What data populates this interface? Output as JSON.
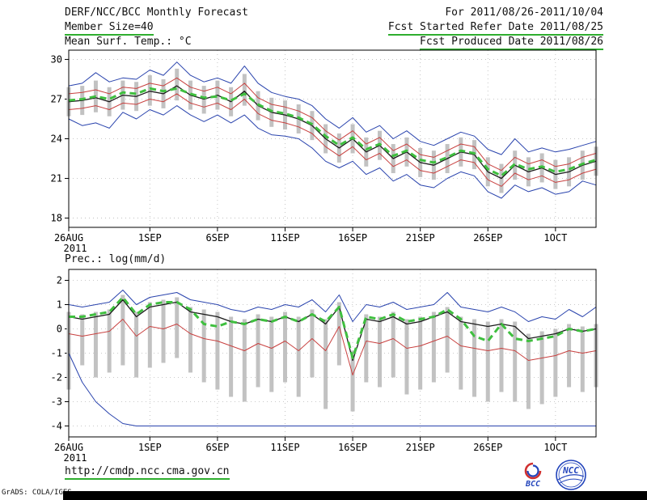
{
  "header": {
    "title": "DERF/NCC/BCC Monthly Forecast",
    "member_size": "Member Size=40",
    "for_range": "For 2011/08/26-2011/10/04",
    "fcst_started": "Fcst Started Refer Date 2011/08/25",
    "fcst_produced": "Fcst Produced Date 2011/08/26"
  },
  "footer": {
    "url": "http://cmdp.ncc.cma.gov.cn",
    "credit": "GrADS: COLA/IGES",
    "logo_bcc_label": "BCC",
    "logo_ncc_label": "NCC"
  },
  "colors": {
    "envelope_blue": "#2943ad",
    "quartile_red": "#c8403f",
    "mean_black": "#1a1a1a",
    "highlight_green": "#3fbf3f",
    "bar_gray": "#c2c2c2",
    "underline_green": "#2fae2f",
    "grid_gray": "#b8b8b8"
  },
  "chart_data": [
    {
      "type": "line",
      "title": "Mean Surf. Temp.: °C",
      "n_points": 40,
      "x_year": "2011",
      "ylim": [
        17.3,
        30.7
      ],
      "yticks": [
        18,
        21,
        24,
        27,
        30
      ],
      "xticks": [
        {
          "index": 0,
          "label": "26AUG"
        },
        {
          "index": 6,
          "label": "1SEP"
        },
        {
          "index": 11,
          "label": "6SEP"
        },
        {
          "index": 16,
          "label": "11SEP"
        },
        {
          "index": 21,
          "label": "16SEP"
        },
        {
          "index": 26,
          "label": "21SEP"
        },
        {
          "index": 31,
          "label": "26SEP"
        },
        {
          "index": 36,
          "label": "1OCT"
        }
      ],
      "bars": {
        "color": "#c2c2c2",
        "high": [
          27.9,
          28.0,
          28.4,
          27.9,
          28.4,
          28.3,
          28.8,
          28.5,
          29.3,
          28.4,
          28.0,
          28.4,
          27.9,
          28.9,
          27.6,
          27.1,
          26.9,
          26.6,
          26.1,
          25.1,
          24.4,
          25.1,
          24.1,
          24.6,
          23.6,
          24.1,
          23.3,
          23.1,
          23.6,
          24.1,
          23.9,
          22.6,
          22.1,
          23.1,
          22.6,
          22.9,
          22.4,
          22.6,
          23.1,
          23.4
        ],
        "low": [
          25.7,
          25.8,
          26.0,
          25.7,
          26.2,
          26.1,
          26.5,
          26.3,
          26.9,
          26.2,
          25.9,
          26.2,
          25.7,
          26.5,
          25.4,
          24.9,
          24.7,
          24.4,
          23.9,
          22.9,
          22.2,
          22.9,
          21.9,
          22.4,
          21.4,
          21.9,
          21.1,
          20.9,
          21.4,
          21.9,
          21.7,
          20.4,
          19.9,
          20.9,
          20.4,
          20.7,
          20.2,
          20.4,
          20.9,
          21.2
        ]
      },
      "series": [
        {
          "name": "ensemble-max",
          "color": "#2943ad",
          "width": 1,
          "dash": "",
          "values": [
            28.0,
            28.2,
            29.0,
            28.3,
            28.6,
            28.5,
            29.2,
            28.8,
            29.8,
            28.8,
            28.3,
            28.6,
            28.2,
            29.5,
            28.2,
            27.5,
            27.2,
            27.0,
            26.5,
            25.5,
            24.8,
            25.6,
            24.5,
            25.0,
            24.0,
            24.6,
            23.8,
            23.5,
            24.0,
            24.5,
            24.2,
            23.2,
            22.8,
            24.0,
            23.0,
            23.3,
            23.0,
            23.2,
            23.5,
            23.8
          ]
        },
        {
          "name": "ensemble-min",
          "color": "#2943ad",
          "width": 1,
          "dash": "",
          "values": [
            25.5,
            25.0,
            25.2,
            24.8,
            26.0,
            25.5,
            26.2,
            25.8,
            26.5,
            25.8,
            25.3,
            25.8,
            25.2,
            25.8,
            24.8,
            24.3,
            24.2,
            24.0,
            23.3,
            22.3,
            21.8,
            22.3,
            21.3,
            21.8,
            20.8,
            21.3,
            20.5,
            20.3,
            21.0,
            21.5,
            21.2,
            20.0,
            19.5,
            20.5,
            20.0,
            20.3,
            19.8,
            20.0,
            20.8,
            20.5
          ]
        },
        {
          "name": "upper-spread",
          "color": "#c8403f",
          "width": 1,
          "dash": "",
          "values": [
            27.4,
            27.5,
            27.7,
            27.4,
            27.9,
            27.8,
            28.2,
            28.0,
            28.6,
            27.9,
            27.6,
            27.9,
            27.4,
            28.2,
            27.1,
            26.6,
            26.4,
            26.1,
            25.6,
            24.6,
            23.9,
            24.6,
            23.6,
            24.1,
            23.1,
            23.6,
            22.8,
            22.6,
            23.1,
            23.6,
            23.4,
            22.1,
            21.6,
            22.6,
            22.1,
            22.4,
            21.9,
            22.1,
            22.6,
            22.9
          ]
        },
        {
          "name": "lower-spread",
          "color": "#c8403f",
          "width": 1,
          "dash": "",
          "values": [
            26.2,
            26.3,
            26.5,
            26.2,
            26.7,
            26.6,
            27.0,
            26.8,
            27.4,
            26.7,
            26.4,
            26.7,
            26.2,
            27.0,
            25.9,
            25.4,
            25.2,
            24.9,
            24.4,
            23.4,
            22.7,
            23.4,
            22.4,
            22.9,
            21.9,
            22.4,
            21.6,
            21.4,
            21.9,
            22.4,
            22.2,
            20.9,
            20.4,
            21.4,
            20.9,
            21.2,
            20.7,
            20.9,
            21.4,
            21.7
          ]
        },
        {
          "name": "ensemble-mean",
          "color": "#1a1a1a",
          "width": 1.3,
          "dash": "",
          "values": [
            26.8,
            26.9,
            27.1,
            26.8,
            27.3,
            27.2,
            27.6,
            27.4,
            28.0,
            27.3,
            27.0,
            27.3,
            26.8,
            27.6,
            26.5,
            26.0,
            25.8,
            25.5,
            25.0,
            24.0,
            23.3,
            24.0,
            23.0,
            23.5,
            22.5,
            23.0,
            22.2,
            22.0,
            22.5,
            23.0,
            22.8,
            21.5,
            21.0,
            22.0,
            21.5,
            21.8,
            21.3,
            21.5,
            22.0,
            22.3
          ]
        },
        {
          "name": "highlight-dashed",
          "color": "#3fbf3f",
          "width": 3,
          "dash": "8,5",
          "values": [
            26.9,
            27.0,
            27.2,
            27.0,
            27.5,
            27.4,
            27.8,
            27.6,
            27.8,
            27.4,
            27.1,
            27.2,
            26.9,
            27.4,
            26.6,
            26.1,
            25.9,
            25.6,
            25.1,
            24.2,
            23.5,
            24.1,
            23.2,
            23.6,
            22.7,
            23.1,
            22.4,
            22.2,
            22.6,
            23.1,
            22.9,
            21.7,
            21.2,
            22.1,
            21.7,
            21.9,
            21.5,
            21.7,
            22.1,
            22.4
          ]
        }
      ]
    },
    {
      "type": "line",
      "title": "Prec.: log(mm/d)",
      "n_points": 40,
      "x_year": "2011",
      "ylim": [
        -4.45,
        2.45
      ],
      "yticks": [
        -4,
        -3,
        -2,
        -1,
        0,
        1,
        2
      ],
      "xticks": [
        {
          "index": 0,
          "label": "26AUG"
        },
        {
          "index": 6,
          "label": "1SEP"
        },
        {
          "index": 11,
          "label": "6SEP"
        },
        {
          "index": 16,
          "label": "11SEP"
        },
        {
          "index": 21,
          "label": "16SEP"
        },
        {
          "index": 26,
          "label": "21SEP"
        },
        {
          "index": 31,
          "label": "26SEP"
        },
        {
          "index": 36,
          "label": "1OCT"
        }
      ],
      "bars": {
        "color": "#c2c2c2",
        "high": [
          0.7,
          0.6,
          0.7,
          0.8,
          1.4,
          0.7,
          1.1,
          1.2,
          1.3,
          0.9,
          0.8,
          0.7,
          0.5,
          0.4,
          0.6,
          0.5,
          0.7,
          0.5,
          0.8,
          0.4,
          1.1,
          -0.9,
          0.6,
          0.5,
          0.7,
          0.4,
          0.5,
          0.7,
          0.9,
          0.5,
          0.4,
          0.3,
          0.4,
          0.3,
          -0.2,
          -0.1,
          0,
          0.2,
          0.1,
          0.2
        ],
        "low": [
          -2.5,
          -1.5,
          -2.0,
          -1.8,
          -1.5,
          -2.0,
          -1.6,
          -1.4,
          -1.2,
          -1.8,
          -2.2,
          -2.5,
          -2.8,
          -3.0,
          -2.4,
          -2.6,
          -2.2,
          -2.8,
          -2.0,
          -3.3,
          -1.5,
          -3.4,
          -2.2,
          -2.4,
          -2.0,
          -2.7,
          -2.5,
          -2.2,
          -1.8,
          -2.5,
          -2.8,
          -3.0,
          -2.6,
          -3.0,
          -3.3,
          -3.1,
          -2.8,
          -2.4,
          -2.6,
          -2.4
        ]
      },
      "series": [
        {
          "name": "ensemble-max",
          "color": "#2943ad",
          "width": 1,
          "dash": "",
          "values": [
            1.0,
            0.9,
            1.0,
            1.1,
            1.6,
            1.0,
            1.3,
            1.4,
            1.5,
            1.2,
            1.1,
            1.0,
            0.8,
            0.7,
            0.9,
            0.8,
            1.0,
            0.9,
            1.2,
            0.7,
            1.4,
            0.3,
            1.0,
            0.9,
            1.1,
            0.8,
            0.9,
            1.0,
            1.5,
            0.9,
            0.8,
            0.7,
            0.9,
            0.7,
            0.3,
            0.5,
            0.4,
            0.8,
            0.5,
            0.9
          ]
        },
        {
          "name": "ensemble-min",
          "color": "#2943ad",
          "width": 1,
          "dash": "",
          "values": [
            -1.0,
            -2.2,
            -3.0,
            -3.5,
            -3.9,
            -4.0,
            -4.0,
            -4.0,
            -4.0,
            -4.0,
            -4.0,
            -4.0,
            -4.0,
            -4.0,
            -4.0,
            -4.0,
            -4.0,
            -4.0,
            -4.0,
            -4.0,
            -4.0,
            -4.0,
            -4.0,
            -4.0,
            -4.0,
            -4.0,
            -4.0,
            -4.0,
            -4.0,
            -4.0,
            -4.0,
            -4.0,
            -4.0,
            -4.0,
            -4.0,
            -4.0,
            -4.0,
            -4.0,
            -4.0,
            -4.0
          ]
        },
        {
          "name": "lower-spread",
          "color": "#c8403f",
          "width": 1,
          "dash": "",
          "values": [
            -0.2,
            -0.3,
            -0.2,
            -0.1,
            0.4,
            -0.3,
            0.1,
            0,
            0.2,
            -0.2,
            -0.4,
            -0.5,
            -0.7,
            -0.9,
            -0.6,
            -0.8,
            -0.5,
            -0.9,
            -0.4,
            -0.9,
            0.1,
            -1.9,
            -0.5,
            -0.6,
            -0.4,
            -0.8,
            -0.7,
            -0.5,
            -0.3,
            -0.7,
            -0.8,
            -0.9,
            -0.8,
            -0.9,
            -1.3,
            -1.2,
            -1.1,
            -0.9,
            -1.0,
            -0.9
          ]
        },
        {
          "name": "ensemble-mean",
          "color": "#1a1a1a",
          "width": 1.3,
          "dash": "",
          "values": [
            0.5,
            0.4,
            0.5,
            0.6,
            1.2,
            0.5,
            0.9,
            1.0,
            1.1,
            0.7,
            0.6,
            0.5,
            0.3,
            0.2,
            0.4,
            0.3,
            0.5,
            0.3,
            0.6,
            0.2,
            0.9,
            -1.3,
            0.4,
            0.3,
            0.5,
            0.2,
            0.3,
            0.5,
            0.7,
            0.3,
            0.2,
            0.1,
            0.2,
            0.1,
            -0.4,
            -0.3,
            -0.2,
            0,
            -0.1,
            0
          ]
        },
        {
          "name": "highlight-dashed",
          "color": "#3fbf3f",
          "width": 3,
          "dash": "8,5",
          "values": [
            0.5,
            0.5,
            0.6,
            0.7,
            1.3,
            0.6,
            1.0,
            1.1,
            1.1,
            0.8,
            0.2,
            0.1,
            0.3,
            0.2,
            0.4,
            0.3,
            0.5,
            0.3,
            0.6,
            0.3,
            0.9,
            -1.2,
            0.5,
            0.4,
            0.6,
            0.3,
            0.4,
            0.5,
            0.8,
            0.4,
            -0.3,
            -0.5,
            0.2,
            -0.4,
            -0.5,
            -0.4,
            -0.3,
            0,
            -0.1,
            0
          ]
        }
      ]
    }
  ]
}
